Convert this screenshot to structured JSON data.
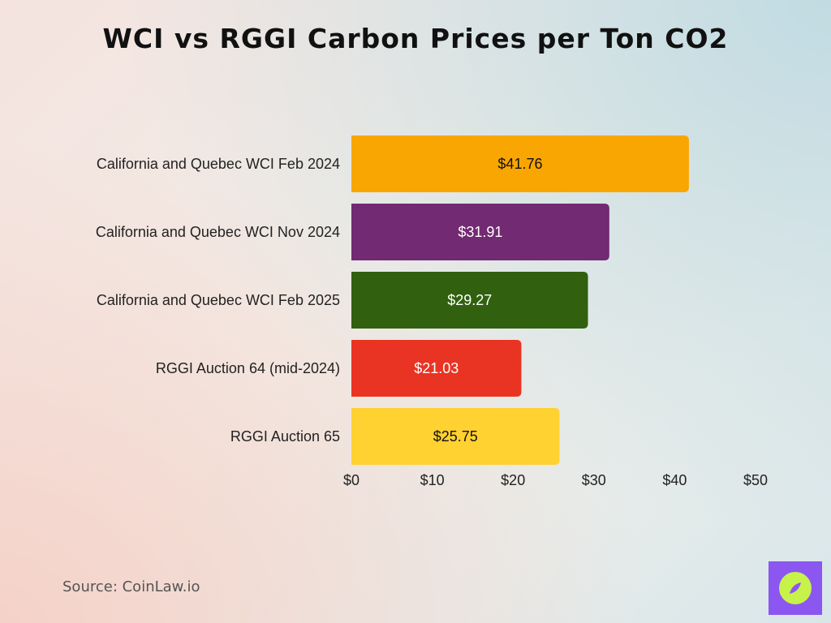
{
  "title": "WCI vs RGGI Carbon Prices per Ton CO2",
  "source": "Source: CoinLaw.io",
  "logo_icon": "compass-icon",
  "chart_data": {
    "type": "bar",
    "orientation": "horizontal",
    "title": "WCI vs RGGI Carbon Prices per Ton CO2",
    "categories": [
      "California and Quebec WCI Feb 2024",
      "California and Quebec WCI Nov 2024",
      "California and Quebec WCI Feb 2025",
      "RGGI Auction 64 (mid-2024)",
      "RGGI Auction 65"
    ],
    "values": [
      41.76,
      31.91,
      29.27,
      21.03,
      25.75
    ],
    "value_labels": [
      "$41.76",
      "$31.91",
      "$29.27",
      "$21.03",
      "$25.75"
    ],
    "colors": [
      "#f9a602",
      "#722a72",
      "#31600f",
      "#e93423",
      "#ffd131"
    ],
    "label_colors": [
      "#111111",
      "#ffffff",
      "#ffffff",
      "#ffffff",
      "#111111"
    ],
    "xlim": [
      0,
      50
    ],
    "xticks": [
      0,
      10,
      20,
      30,
      40,
      50
    ],
    "xtick_labels": [
      "$0",
      "$10",
      "$20",
      "$30",
      "$40",
      "$50"
    ],
    "grid": false,
    "legend": "none"
  }
}
